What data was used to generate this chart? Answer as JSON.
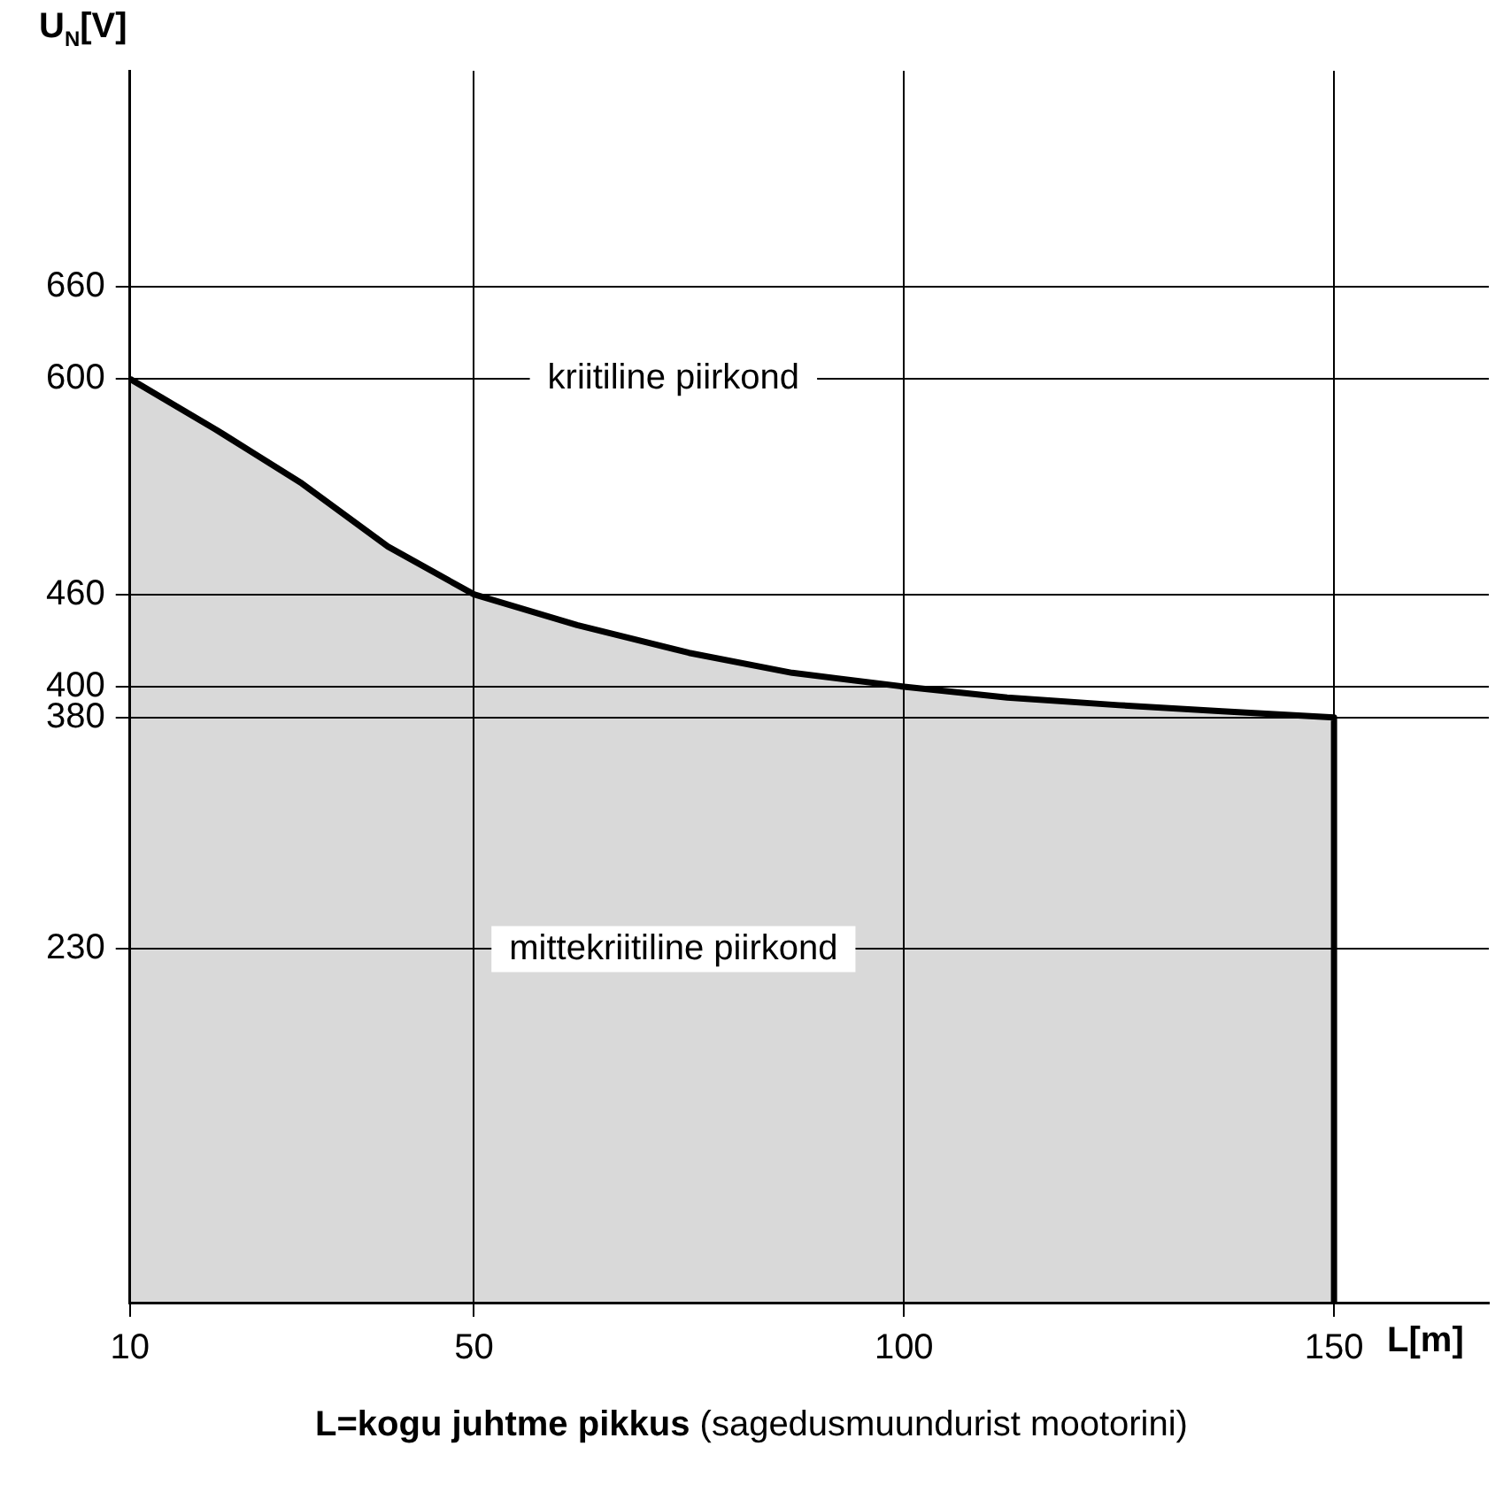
{
  "chart_data": {
    "type": "area",
    "ylabel": "U$_{N}$[V]",
    "xlabel": "L[m]",
    "x": [
      10,
      20,
      30,
      40,
      50,
      62,
      75,
      87,
      100,
      112,
      125,
      137,
      150,
      150
    ],
    "series": [
      {
        "color": "#000000",
        "values": [
          600,
          567,
          532,
          491,
          460,
          440,
          422,
          409,
          400,
          393,
          388,
          384,
          380,
          0
        ]
      }
    ],
    "xlim": [
      10,
      168
    ],
    "xticks": [
      10,
      50,
      100,
      150
    ],
    "ylim": [
      0,
      800
    ],
    "yticks": [
      230,
      380,
      400,
      460,
      600,
      660
    ],
    "grid": true,
    "legend": false,
    "marker": "none",
    "line_style": "solid",
    "annotations": [
      "kriitiline piirkond",
      "mittekriitiline piirkond",
      "L=kogu juhtme pikkus (sagedusmuundurist mootorini)"
    ]
  }
}
